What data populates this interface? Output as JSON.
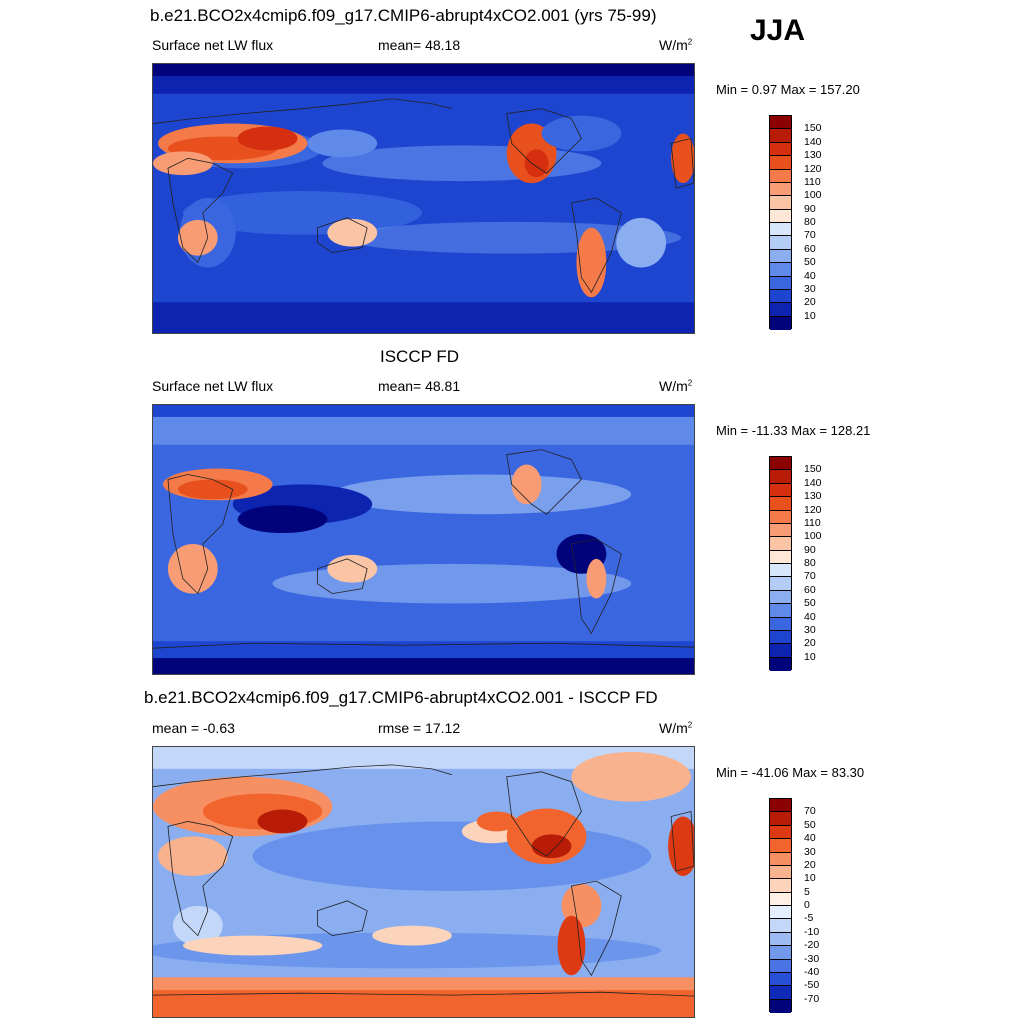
{
  "season": "JJA",
  "panels": [
    {
      "id": "model",
      "title": "b.e21.BCO2x4cmip6.f09_g17.CMIP6-abrupt4xCO2.001 (yrs 75-99)",
      "left_label": "Surface net LW flux",
      "center_label": "mean=  48.18",
      "units": "W/m",
      "units_exp": "2",
      "minmax": "Min =   0.97 Max = 157.20",
      "colorbar": {
        "labels": [
          "150",
          "140",
          "130",
          "120",
          "110",
          "100",
          "90",
          "80",
          "70",
          "60",
          "50",
          "40",
          "30",
          "20",
          "10"
        ],
        "colors": [
          "#8b0000",
          "#b81c06",
          "#d62f10",
          "#e8501e",
          "#f47a4a",
          "#f89c76",
          "#fbc4a4",
          "#fee7d6",
          "#d8e6fb",
          "#b4cdf6",
          "#8aaef0",
          "#5f8aea",
          "#3a67e0",
          "#1d45cf",
          "#0c24b0",
          "#00037a"
        ]
      }
    },
    {
      "id": "obs",
      "title": "ISCCP FD",
      "left_label": "Surface net LW flux",
      "center_label": "mean=  48.81",
      "units": "W/m",
      "units_exp": "2",
      "minmax": "Min = -11.33 Max = 128.21",
      "colorbar": {
        "labels": [
          "150",
          "140",
          "130",
          "120",
          "110",
          "100",
          "90",
          "80",
          "70",
          "60",
          "50",
          "40",
          "30",
          "20",
          "10"
        ],
        "colors": [
          "#8b0000",
          "#b81c06",
          "#d62f10",
          "#e8501e",
          "#f47a4a",
          "#f89c76",
          "#fbc4a4",
          "#fee7d6",
          "#d8e6fb",
          "#b4cdf6",
          "#8aaef0",
          "#5f8aea",
          "#3a67e0",
          "#1d45cf",
          "#0c24b0",
          "#00037a"
        ]
      }
    },
    {
      "id": "diff",
      "title": "b.e21.BCO2x4cmip6.f09_g17.CMIP6-abrupt4xCO2.001 - ISCCP FD",
      "left_label": "mean =  -0.63",
      "center_label": "rmse =  17.12",
      "units": "W/m",
      "units_exp": "2",
      "minmax": "Min = -41.06 Max =  83.30",
      "colorbar": {
        "labels": [
          "70",
          "50",
          "40",
          "30",
          "20",
          "10",
          "5",
          "0",
          "-5",
          "-10",
          "-20",
          "-30",
          "-40",
          "-50",
          "-70"
        ],
        "colors": [
          "#8b0000",
          "#b81c06",
          "#dd3a14",
          "#f2642e",
          "#f68f62",
          "#f9b28e",
          "#fcd4bb",
          "#fff0e6",
          "#e4eefc",
          "#c3d7f8",
          "#9dbbf2",
          "#7399ec",
          "#4a74e4",
          "#2750d6",
          "#0f2ab8",
          "#00037a"
        ]
      }
    }
  ]
}
